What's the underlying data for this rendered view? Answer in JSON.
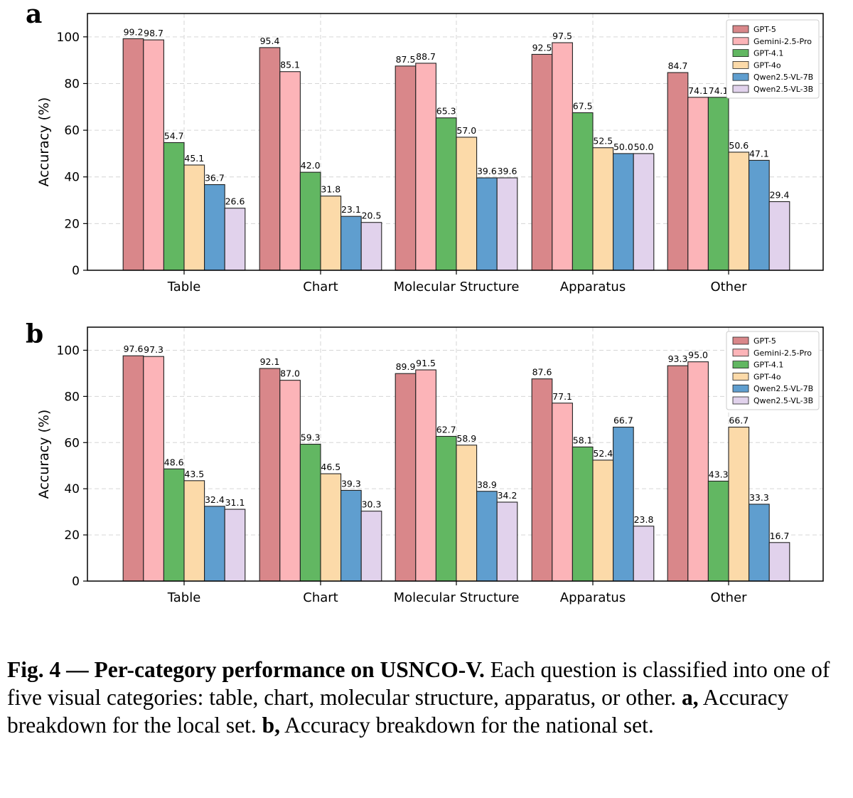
{
  "chart_data": [
    {
      "type": "bar",
      "panel": "a",
      "categories": [
        "Table",
        "Chart",
        "Molecular Structure",
        "Apparatus",
        "Other"
      ],
      "series": [
        {
          "name": "GPT-5",
          "color": "#d9878a",
          "values": [
            99.2,
            95.4,
            87.5,
            92.5,
            84.7
          ],
          "labels": [
            "99.2",
            "95.4",
            "87.5",
            "92.5",
            "84.7"
          ]
        },
        {
          "name": "Gemini-2.5-Pro",
          "color": "#fcb4b8",
          "values": [
            98.7,
            85.1,
            88.7,
            97.5,
            74.1
          ],
          "labels": [
            "98.7",
            "85.1",
            "88.7",
            "97.5",
            "74.1"
          ]
        },
        {
          "name": "GPT-4.1",
          "color": "#62b762",
          "values": [
            54.7,
            42.0,
            65.3,
            67.5,
            74.1
          ],
          "labels": [
            "54.7",
            "42.0",
            "65.3",
            "67.5",
            "74.1"
          ]
        },
        {
          "name": "GPT-4o",
          "color": "#fcdaa9",
          "values": [
            45.1,
            31.8,
            57.0,
            52.5,
            50.6
          ],
          "labels": [
            "45.1",
            "31.8",
            "57.0",
            "52.5",
            "50.6"
          ]
        },
        {
          "name": "Qwen2.5-VL-7B",
          "color": "#5f9ecf",
          "values": [
            36.7,
            23.1,
            39.6,
            50.0,
            47.1
          ],
          "labels": [
            "36.7",
            "23.1",
            "39.6",
            "50.0",
            "47.1"
          ]
        },
        {
          "name": "Qwen2.5-VL-3B",
          "color": "#e1d2ec",
          "values": [
            26.6,
            20.5,
            39.6,
            50.0,
            29.4
          ],
          "labels": [
            "26.6",
            "20.5",
            "39.6",
            "50.0",
            "29.4"
          ]
        }
      ],
      "ylabel": "Accuracy (%)",
      "ylim": [
        0,
        110
      ],
      "yticks": [
        0,
        20,
        40,
        60,
        80,
        100
      ],
      "grid": true,
      "legend": "top-right"
    },
    {
      "type": "bar",
      "panel": "b",
      "categories": [
        "Table",
        "Chart",
        "Molecular Structure",
        "Apparatus",
        "Other"
      ],
      "series": [
        {
          "name": "GPT-5",
          "color": "#d9878a",
          "values": [
            97.6,
            92.1,
            89.9,
            87.6,
            93.3
          ],
          "labels": [
            "97.6",
            "92.1",
            "89.9",
            "87.6",
            "93.3"
          ]
        },
        {
          "name": "Gemini-2.5-Pro",
          "color": "#fcb4b8",
          "values": [
            97.3,
            87.0,
            91.5,
            77.1,
            95.0
          ],
          "labels": [
            "97.3",
            "87.0",
            "91.5",
            "77.1",
            "95.0"
          ]
        },
        {
          "name": "GPT-4.1",
          "color": "#62b762",
          "values": [
            48.6,
            59.3,
            62.7,
            58.1,
            43.3
          ],
          "labels": [
            "48.6",
            "59.3",
            "62.7",
            "58.1",
            "43.3"
          ]
        },
        {
          "name": "GPT-4o",
          "color": "#fcdaa9",
          "values": [
            43.5,
            46.5,
            58.9,
            52.4,
            66.7
          ],
          "labels": [
            "43.5",
            "46.5",
            "58.9",
            "52.4",
            "66.7"
          ]
        },
        {
          "name": "Qwen2.5-VL-7B",
          "color": "#5f9ecf",
          "values": [
            32.4,
            39.3,
            38.9,
            66.7,
            33.3
          ],
          "labels": [
            "32.4",
            "39.3",
            "38.9",
            "66.7",
            "33.3"
          ]
        },
        {
          "name": "Qwen2.5-VL-3B",
          "color": "#e1d2ec",
          "values": [
            31.1,
            30.3,
            34.2,
            23.8,
            16.7
          ],
          "labels": [
            "31.1",
            "30.3",
            "34.2",
            "23.8",
            "16.7"
          ]
        }
      ],
      "ylabel": "Accuracy (%)",
      "ylim": [
        0,
        110
      ],
      "yticks": [
        0,
        20,
        40,
        60,
        80,
        100
      ],
      "grid": true,
      "legend": "top-right"
    }
  ],
  "caption": {
    "title": "Fig. 4 — Per-category performance on USNCO-V.",
    "text_1": " Each question is classified into one of five visual categories: table, chart, molecular structure, apparatus, or other. ",
    "label_a": "a,",
    "text_a": " Accuracy breakdown for the local set. ",
    "label_b": "b,",
    "text_b": " Accuracy breakdown for the national set."
  }
}
